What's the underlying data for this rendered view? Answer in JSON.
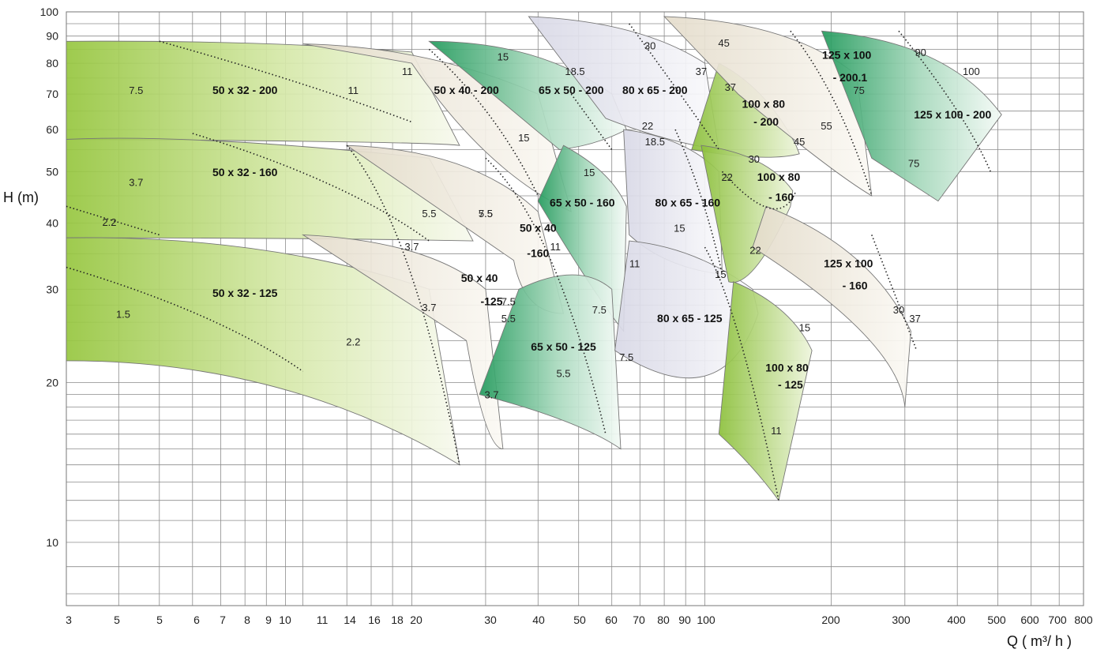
{
  "chart_data": {
    "type": "area",
    "title": "",
    "xlabel": "Q ( m³/ h )",
    "ylabel": "H (m)",
    "x_scale": "log",
    "y_scale": "log",
    "xlim": [
      3,
      800
    ],
    "ylim": [
      7.6,
      100
    ],
    "grid": true,
    "x_tick_labels": [
      "3",
      "5",
      "5",
      "6",
      "7",
      "8",
      "9",
      "10",
      "11",
      "14",
      "16",
      "18",
      "20",
      "30",
      "40",
      "50",
      "60",
      "70",
      "80",
      "90",
      "100",
      "200",
      "300",
      "400",
      "500",
      "600",
      "700",
      "800"
    ],
    "y_tick_labels": [
      "10",
      "20",
      "30",
      "40",
      "50",
      "60",
      "70",
      "80",
      "90",
      "100"
    ],
    "pumps": [
      {
        "name": "50 x 32 - 200",
        "color": "#9bc842",
        "q_range": [
          3,
          26
        ],
        "h_range": [
          56,
          88
        ],
        "power_labels": [
          "7.5",
          "11"
        ]
      },
      {
        "name": "50 x 32 - 160",
        "color": "#9bc842",
        "q_range": [
          3,
          28
        ],
        "h_range": [
          37,
          59
        ],
        "power_labels": [
          "3.7",
          "5.5",
          "7.5"
        ]
      },
      {
        "name": "50 x 32 - 125",
        "color": "#9bc842",
        "q_range": [
          3,
          26
        ],
        "h_range": [
          14,
          38
        ],
        "power_labels": [
          "2.2",
          "1.5",
          "2.2",
          "3.7"
        ]
      },
      {
        "name": "50 x 40 - 200",
        "color": "#ece4d6",
        "q_range": [
          11,
          48
        ],
        "h_range": [
          42,
          87
        ],
        "power_labels": [
          "11",
          "15"
        ]
      },
      {
        "name": "50 x 40 -160",
        "color": "#ece4d6",
        "q_range": [
          14,
          46
        ],
        "h_range": [
          27,
          56
        ],
        "power_labels": [
          "5.5",
          "7.5"
        ]
      },
      {
        "name": "50 x 40 -125",
        "color": "#ece4d6",
        "q_range": [
          11,
          33
        ],
        "h_range": [
          15,
          38
        ],
        "power_labels": [
          "3.7",
          "5.5"
        ]
      },
      {
        "name": "65 x 50 - 200",
        "color": "#2ea063",
        "q_range": [
          22,
          65
        ],
        "h_range": [
          53,
          89
        ],
        "power_labels": [
          "15",
          "18.5"
        ]
      },
      {
        "name": "65 x 50 - 160",
        "color": "#2ea063",
        "q_range": [
          39,
          67
        ],
        "h_range": [
          25,
          56
        ],
        "power_labels": [
          "15",
          "11"
        ]
      },
      {
        "name": "65 x 50 - 125",
        "color": "#2ea063",
        "q_range": [
          29,
          63
        ],
        "h_range": [
          15,
          34
        ],
        "power_labels": [
          "3.7",
          "5.5",
          "7.5"
        ]
      },
      {
        "name": "80 x 65 - 200",
        "color": "#dcdcea",
        "q_range": [
          34,
          108
        ],
        "h_range": [
          55,
          97
        ],
        "power_labels": [
          "30",
          "37",
          "22"
        ]
      },
      {
        "name": "80 x 65 - 160",
        "color": "#dcdcea",
        "q_range": [
          58,
          110
        ],
        "h_range": [
          32,
          59
        ],
        "power_labels": [
          "18.5",
          "22",
          "15"
        ]
      },
      {
        "name": "80 x 65 - 125",
        "color": "#dcdcea",
        "q_range": [
          61,
          135
        ],
        "h_range": [
          17,
          37
        ],
        "power_labels": [
          "11",
          "15",
          "7.5"
        ]
      },
      {
        "name": "100 x 80 - 200",
        "color": "#8fc13d",
        "q_range": [
          93,
          168
        ],
        "h_range": [
          49,
          78
        ],
        "power_labels": [
          "37",
          "45",
          "30"
        ]
      },
      {
        "name": "100 x 80 - 160",
        "color": "#8fc13d",
        "q_range": [
          108,
          162
        ],
        "h_range": [
          31,
          58
        ],
        "power_labels": [
          "22"
        ]
      },
      {
        "name": "100 x 80 - 125",
        "color": "#8fc13d",
        "q_range": [
          108,
          180
        ],
        "h_range": [
          12,
          31
        ],
        "power_labels": [
          "15",
          "11"
        ]
      },
      {
        "name": "125 x 100 - 200.1",
        "color": "#ece4d6",
        "q_range": [
          79,
          250
        ],
        "h_range": [
          47,
          98
        ],
        "power_labels": [
          "45",
          "75",
          "55"
        ]
      },
      {
        "name": "125 x 100 - 160",
        "color": "#ece4d6",
        "q_range": [
          140,
          316
        ],
        "h_range": [
          18,
          42
        ],
        "power_labels": [
          "30",
          "37"
        ]
      },
      {
        "name": "125 x 100 - 200",
        "color": "#2ea063",
        "q_range": [
          190,
          512
        ],
        "h_range": [
          44,
          92
        ],
        "power_labels": [
          "90",
          "100",
          "75"
        ]
      }
    ]
  }
}
